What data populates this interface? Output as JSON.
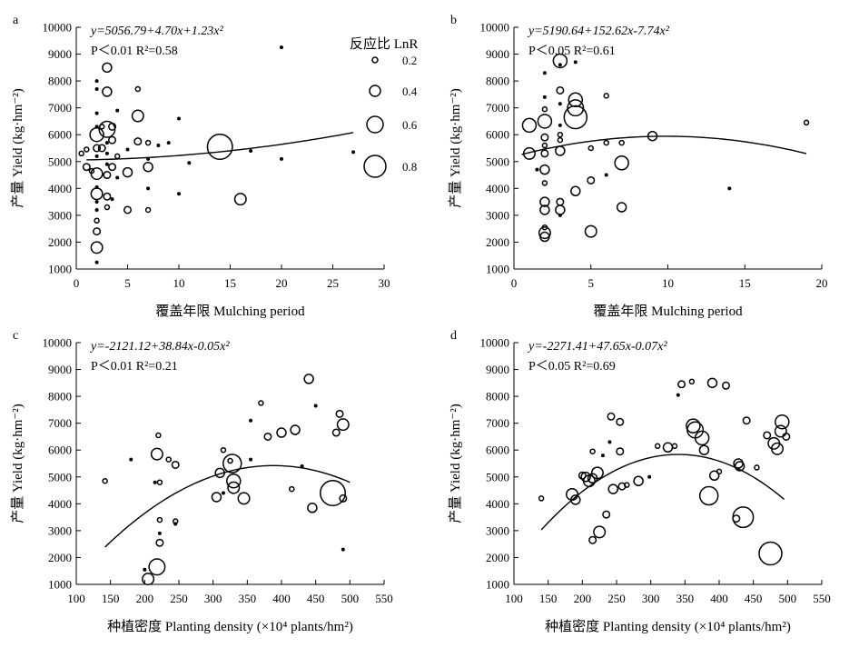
{
  "legend": {
    "title": "反应比 LnR",
    "items": [
      {
        "label": "0.2",
        "value": 0.2
      },
      {
        "label": "0.4",
        "value": 0.4
      },
      {
        "label": "0.6",
        "value": 0.6
      },
      {
        "label": "0.8",
        "value": 0.8
      }
    ]
  },
  "chart_data": [
    {
      "type": "scatter",
      "panel": "a",
      "xlabel": "覆盖年限 Mulching period",
      "ylabel": "产量 Yield (kg·hm⁻²)",
      "xlim": [
        0,
        30
      ],
      "ylim": [
        1000,
        10000
      ],
      "xticks": [
        0,
        5,
        10,
        15,
        20,
        25,
        30
      ],
      "yticks": [
        1000,
        2000,
        3000,
        4000,
        5000,
        6000,
        7000,
        8000,
        9000,
        10000
      ],
      "equation": "y=5056.79+4.70x+1.23x²",
      "stats": "P＜0.01   R²=0.58",
      "fit": {
        "form": "quadratic",
        "coef": [
          5056.79,
          4.7,
          1.23
        ],
        "x_range": [
          1,
          27
        ]
      },
      "points": [
        [
          0.5,
          5300,
          0.1
        ],
        [
          1,
          5450,
          0.1
        ],
        [
          1,
          4800,
          0.15
        ],
        [
          1.5,
          4650,
          0.1
        ],
        [
          2,
          8000,
          0.05
        ],
        [
          2,
          7700,
          0.05
        ],
        [
          2,
          6800,
          0.05
        ],
        [
          2,
          6300,
          0.05
        ],
        [
          2,
          6000,
          0.3
        ],
        [
          2,
          5500,
          0.15
        ],
        [
          2,
          5200,
          0.05
        ],
        [
          2,
          4550,
          0.25
        ],
        [
          2,
          4050,
          0.05
        ],
        [
          2,
          3800,
          0.25
        ],
        [
          2,
          3500,
          0.05
        ],
        [
          2,
          3200,
          0.05
        ],
        [
          2,
          2800,
          0.1
        ],
        [
          2,
          2400,
          0.15
        ],
        [
          2,
          1800,
          0.25
        ],
        [
          2,
          1250,
          0.05
        ],
        [
          2.5,
          6300,
          0.1
        ],
        [
          2.5,
          5500,
          0.15
        ],
        [
          3,
          8500,
          0.2
        ],
        [
          3,
          7600,
          0.2
        ],
        [
          3,
          6200,
          0.35
        ],
        [
          3,
          5700,
          0.05
        ],
        [
          3,
          5300,
          0.05
        ],
        [
          3,
          4900,
          0.05
        ],
        [
          3,
          4500,
          0.15
        ],
        [
          3,
          3700,
          0.15
        ],
        [
          3,
          3300,
          0.1
        ],
        [
          3.5,
          6300,
          0.15
        ],
        [
          3.5,
          5800,
          0.15
        ],
        [
          3.5,
          4800,
          0.15
        ],
        [
          3.5,
          3600,
          0.05
        ],
        [
          4,
          5200,
          0.1
        ],
        [
          4,
          4400,
          0.05
        ],
        [
          4,
          6900,
          0.05
        ],
        [
          5,
          5450,
          0.05
        ],
        [
          5,
          4600,
          0.2
        ],
        [
          5,
          3200,
          0.15
        ],
        [
          6,
          7700,
          0.1
        ],
        [
          6,
          6700,
          0.25
        ],
        [
          6,
          5750,
          0.15
        ],
        [
          7,
          5700,
          0.1
        ],
        [
          7,
          5100,
          0.05
        ],
        [
          7,
          4800,
          0.2
        ],
        [
          7,
          3200,
          0.1
        ],
        [
          7,
          4000,
          0.05
        ],
        [
          8,
          5600,
          0.05
        ],
        [
          9,
          5700,
          0.05
        ],
        [
          11,
          4950,
          0.05
        ],
        [
          14,
          5550,
          0.55
        ],
        [
          16,
          3600,
          0.25
        ],
        [
          17,
          5400,
          0.05
        ],
        [
          20,
          9250,
          0.05
        ],
        [
          20,
          5100,
          0.05
        ],
        [
          10,
          3800,
          0.05
        ],
        [
          27,
          5350,
          0.05
        ],
        [
          10,
          6600,
          0.05
        ]
      ]
    },
    {
      "type": "scatter",
      "panel": "b",
      "xlabel": "覆盖年限 Mulching period",
      "ylabel": "产量 Yield (kg·hm⁻²)",
      "xlim": [
        0,
        20
      ],
      "ylim": [
        1000,
        10000
      ],
      "xticks": [
        0,
        5,
        10,
        15,
        20
      ],
      "yticks": [
        1000,
        2000,
        3000,
        4000,
        5000,
        6000,
        7000,
        8000,
        9000,
        10000
      ],
      "equation": "y=5190.64+152.62x-7.74x²",
      "stats": "P＜0.05   R²=0.61",
      "fit": {
        "form": "quadratic",
        "coef": [
          5190.64,
          152.62,
          -7.74
        ],
        "x_range": [
          0.5,
          19
        ]
      },
      "points": [
        [
          1,
          6350,
          0.3
        ],
        [
          1,
          5300,
          0.25
        ],
        [
          1.5,
          4700,
          0.05
        ],
        [
          2,
          8300,
          0.05
        ],
        [
          2,
          7400,
          0.05
        ],
        [
          2,
          6950,
          0.1
        ],
        [
          2,
          6500,
          0.3
        ],
        [
          2,
          5900,
          0.15
        ],
        [
          2,
          5600,
          0.1
        ],
        [
          2,
          5300,
          0.15
        ],
        [
          2,
          4700,
          0.2
        ],
        [
          2,
          4200,
          0.1
        ],
        [
          2,
          3500,
          0.2
        ],
        [
          2,
          3200,
          0.2
        ],
        [
          2,
          2550,
          0.1
        ],
        [
          2,
          2350,
          0.25
        ],
        [
          2,
          2200,
          0.2
        ],
        [
          3,
          8750,
          0.3
        ],
        [
          3,
          8600,
          0.05
        ],
        [
          3,
          7650,
          0.15
        ],
        [
          3,
          7150,
          0.05
        ],
        [
          3,
          6350,
          0.05
        ],
        [
          3,
          6000,
          0.1
        ],
        [
          3,
          5800,
          0.1
        ],
        [
          3,
          5400,
          0.2
        ],
        [
          3,
          3500,
          0.15
        ],
        [
          3,
          3200,
          0.2
        ],
        [
          3,
          3000,
          0.05
        ],
        [
          4,
          8700,
          0.05
        ],
        [
          4,
          7300,
          0.3
        ],
        [
          4,
          7000,
          0.35
        ],
        [
          4,
          6650,
          0.5
        ],
        [
          4,
          3900,
          0.2
        ],
        [
          5,
          5500,
          0.1
        ],
        [
          5,
          4300,
          0.15
        ],
        [
          5,
          2400,
          0.25
        ],
        [
          6,
          7450,
          0.1
        ],
        [
          6,
          5700,
          0.1
        ],
        [
          6,
          4500,
          0.05
        ],
        [
          7,
          5700,
          0.1
        ],
        [
          7,
          4950,
          0.3
        ],
        [
          7,
          3300,
          0.2
        ],
        [
          9,
          5950,
          0.2
        ],
        [
          14,
          4000,
          0.05
        ],
        [
          19,
          6450,
          0.1
        ]
      ]
    },
    {
      "type": "scatter",
      "panel": "c",
      "xlabel": "种植密度 Planting density (×10⁴ plants/hm²)",
      "ylabel": "产量 Yield (kg·hm⁻²)",
      "xlim": [
        100,
        550
      ],
      "ylim": [
        1000,
        10000
      ],
      "xticks": [
        100,
        150,
        200,
        250,
        300,
        350,
        400,
        450,
        500,
        550
      ],
      "yticks": [
        1000,
        2000,
        3000,
        4000,
        5000,
        6000,
        7000,
        8000,
        9000,
        10000
      ],
      "equation": "y=-2121.12+38.84x-0.05x²",
      "stats": "P＜0.01   R²=0.21",
      "fit": {
        "form": "quadratic",
        "coef": [
          -2121.12,
          38.84,
          -0.05
        ],
        "x_range": [
          142,
          500
        ]
      },
      "points": [
        [
          142,
          4850,
          0.1
        ],
        [
          180,
          5650,
          0.05
        ],
        [
          200,
          1550,
          0.05
        ],
        [
          205,
          1200,
          0.25
        ],
        [
          215,
          4800,
          0.05
        ],
        [
          218,
          5850,
          0.25
        ],
        [
          218,
          1650,
          0.35
        ],
        [
          220,
          6550,
          0.1
        ],
        [
          222,
          3400,
          0.1
        ],
        [
          222,
          2900,
          0.05
        ],
        [
          222,
          2550,
          0.15
        ],
        [
          222,
          4800,
          0.1
        ],
        [
          235,
          5650,
          0.1
        ],
        [
          245,
          5450,
          0.15
        ],
        [
          245,
          3350,
          0.1
        ],
        [
          245,
          3250,
          0.05
        ],
        [
          305,
          4250,
          0.2
        ],
        [
          310,
          5150,
          0.2
        ],
        [
          315,
          6000,
          0.1
        ],
        [
          315,
          4400,
          0.05
        ],
        [
          325,
          5600,
          0.1
        ],
        [
          328,
          5500,
          0.4
        ],
        [
          330,
          4850,
          0.3
        ],
        [
          330,
          4600,
          0.25
        ],
        [
          345,
          4200,
          0.25
        ],
        [
          355,
          7100,
          0.05
        ],
        [
          355,
          5650,
          0.05
        ],
        [
          370,
          7750,
          0.1
        ],
        [
          380,
          6500,
          0.15
        ],
        [
          400,
          6650,
          0.2
        ],
        [
          415,
          4550,
          0.1
        ],
        [
          420,
          6750,
          0.2
        ],
        [
          430,
          5400,
          0.05
        ],
        [
          440,
          8650,
          0.2
        ],
        [
          445,
          3850,
          0.2
        ],
        [
          450,
          7650,
          0.05
        ],
        [
          475,
          4400,
          0.55
        ],
        [
          480,
          6650,
          0.15
        ],
        [
          485,
          7350,
          0.15
        ],
        [
          490,
          4200,
          0.15
        ],
        [
          490,
          6950,
          0.25
        ],
        [
          490,
          2300,
          0.05
        ]
      ]
    },
    {
      "type": "scatter",
      "panel": "d",
      "xlabel": "种植密度 Planting density (×10⁴ plants/hm²)",
      "ylabel": "产量 Yield (kg·hm⁻²)",
      "xlim": [
        100,
        550
      ],
      "ylim": [
        1000,
        10000
      ],
      "xticks": [
        100,
        150,
        200,
        250,
        300,
        350,
        400,
        450,
        500,
        550
      ],
      "yticks": [
        1000,
        2000,
        3000,
        4000,
        5000,
        6000,
        7000,
        8000,
        9000,
        10000
      ],
      "equation": "y=-2271.41+47.65x-0.07x²",
      "stats": "P＜0.05   R²=0.69",
      "fit": {
        "form": "quadratic",
        "coef": [
          -2271.41,
          47.65,
          -0.07
        ],
        "x_range": [
          140,
          495
        ]
      },
      "points": [
        [
          140,
          4200,
          0.1
        ],
        [
          185,
          4350,
          0.25
        ],
        [
          190,
          4150,
          0.2
        ],
        [
          200,
          5050,
          0.15
        ],
        [
          205,
          5000,
          0.2
        ],
        [
          210,
          4850,
          0.25
        ],
        [
          215,
          4950,
          0.2
        ],
        [
          215,
          2650,
          0.15
        ],
        [
          215,
          5950,
          0.1
        ],
        [
          222,
          5150,
          0.25
        ],
        [
          225,
          2950,
          0.25
        ],
        [
          230,
          5800,
          0.05
        ],
        [
          235,
          3600,
          0.15
        ],
        [
          240,
          6300,
          0.05
        ],
        [
          242,
          7250,
          0.15
        ],
        [
          245,
          4550,
          0.2
        ],
        [
          255,
          7050,
          0.15
        ],
        [
          255,
          5950,
          0.15
        ],
        [
          258,
          4650,
          0.15
        ],
        [
          265,
          4700,
          0.1
        ],
        [
          282,
          4850,
          0.2
        ],
        [
          298,
          5000,
          0.05
        ],
        [
          310,
          6150,
          0.1
        ],
        [
          325,
          6100,
          0.2
        ],
        [
          335,
          6150,
          0.1
        ],
        [
          340,
          8050,
          0.05
        ],
        [
          345,
          8450,
          0.15
        ],
        [
          360,
          8550,
          0.1
        ],
        [
          362,
          6900,
          0.3
        ],
        [
          365,
          6750,
          0.35
        ],
        [
          375,
          6450,
          0.3
        ],
        [
          378,
          6000,
          0.2
        ],
        [
          385,
          4300,
          0.4
        ],
        [
          390,
          8500,
          0.2
        ],
        [
          393,
          5050,
          0.2
        ],
        [
          400,
          5200,
          0.1
        ],
        [
          410,
          8400,
          0.15
        ],
        [
          425,
          3450,
          0.15
        ],
        [
          428,
          5500,
          0.2
        ],
        [
          430,
          5400,
          0.2
        ],
        [
          435,
          3500,
          0.45
        ],
        [
          440,
          7100,
          0.15
        ],
        [
          455,
          5350,
          0.1
        ],
        [
          470,
          6550,
          0.15
        ],
        [
          475,
          2150,
          0.5
        ],
        [
          480,
          6250,
          0.25
        ],
        [
          485,
          6050,
          0.25
        ],
        [
          490,
          6700,
          0.25
        ],
        [
          492,
          7050,
          0.3
        ],
        [
          498,
          6500,
          0.15
        ]
      ]
    }
  ]
}
